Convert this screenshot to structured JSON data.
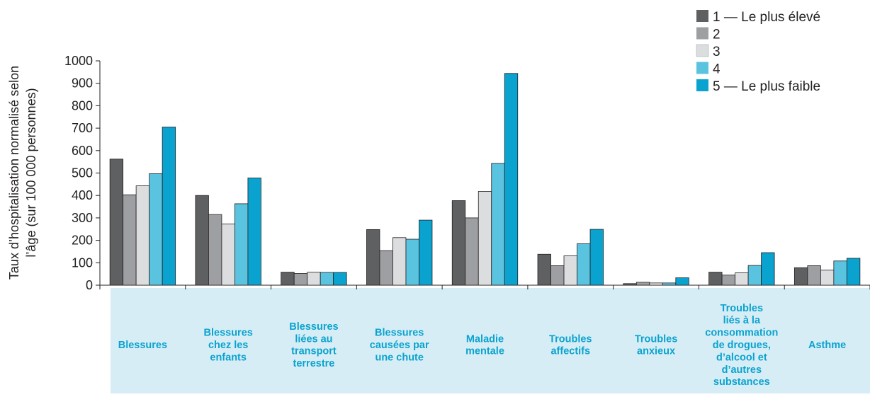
{
  "chart_data": {
    "type": "bar",
    "ylabel": "Taux d’hospitalisation normalisé selon l’âge (sur 100 000 personnes)",
    "ylabel_lines": [
      "Taux d’hospitalisation normalisé selon",
      "l’âge (sur 100 000 personnes)"
    ],
    "ylim": [
      0,
      1000
    ],
    "yticks": [
      0,
      100,
      200,
      300,
      400,
      500,
      600,
      700,
      800,
      900,
      1000
    ],
    "grid": false,
    "legend_position": "top-right",
    "categories": [
      "Blessures",
      "Blessures chez les enfants",
      "Blessures liées au transport terrestre",
      "Blessures causées par une chute",
      "Maladie mentale",
      "Troubles affectifs",
      "Troubles anxieux",
      "Troubles liés à la consommation de drogues, d’alcool et d’autres substances",
      "Asthme"
    ],
    "category_lines": [
      [
        "Blessures"
      ],
      [
        "Blessures",
        "chez les",
        "enfants"
      ],
      [
        "Blessures",
        "liées au",
        "transport",
        "terrestre"
      ],
      [
        "Blessures",
        "causées par",
        "une chute"
      ],
      [
        "Maladie",
        "mentale"
      ],
      [
        "Troubles",
        "affectifs"
      ],
      [
        "Troubles",
        "anxieux"
      ],
      [
        "Troubles",
        "liés à la",
        "consommation",
        "de drogues,",
        "d’alcool et",
        "d’autres",
        "substances"
      ],
      [
        "Asthme"
      ]
    ],
    "series": [
      {
        "name": "1 — Le plus élevé",
        "color": "#5f6062",
        "values": [
          562,
          400,
          58,
          248,
          377,
          138,
          7,
          58,
          78
        ]
      },
      {
        "name": "2",
        "color": "#9d9fa2",
        "values": [
          403,
          315,
          52,
          154,
          300,
          87,
          13,
          45,
          87
        ]
      },
      {
        "name": "3",
        "color": "#dcdddf",
        "values": [
          443,
          273,
          58,
          212,
          418,
          131,
          10,
          55,
          67
        ]
      },
      {
        "name": "4",
        "color": "#5ac3e0",
        "values": [
          497,
          363,
          57,
          205,
          543,
          185,
          10,
          88,
          108
        ]
      },
      {
        "name": "5 — Le plus faible",
        "color": "#0aa3cf",
        "values": [
          705,
          478,
          57,
          290,
          944,
          249,
          33,
          145,
          120
        ]
      }
    ],
    "colors": {
      "category_band": "#d7edf5",
      "category_text": "#0aa3cf",
      "axis": "#231f20",
      "bar_outline": "#231f20"
    }
  }
}
